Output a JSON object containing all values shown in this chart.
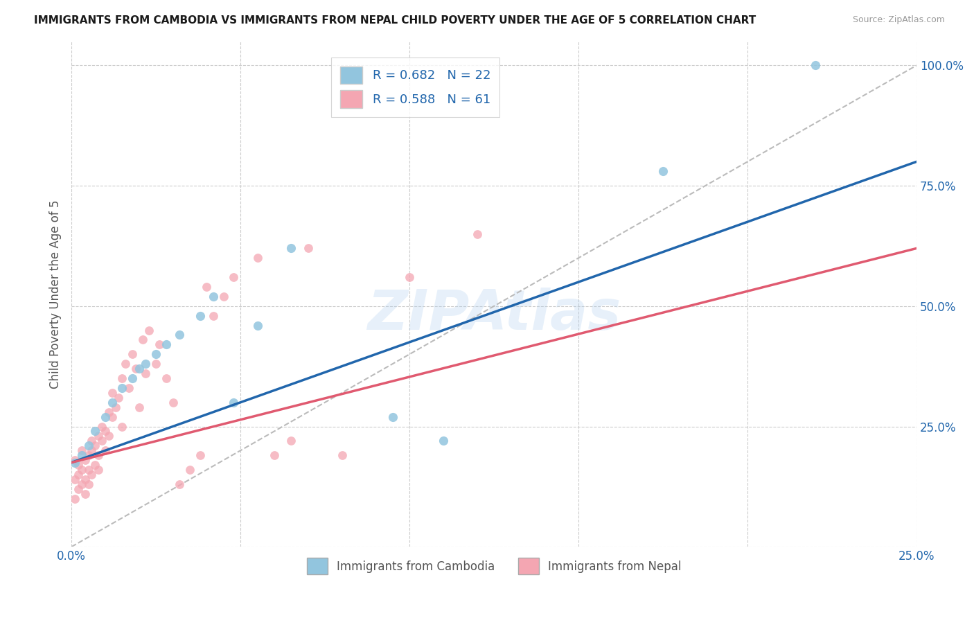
{
  "title": "IMMIGRANTS FROM CAMBODIA VS IMMIGRANTS FROM NEPAL CHILD POVERTY UNDER THE AGE OF 5 CORRELATION CHART",
  "source": "Source: ZipAtlas.com",
  "ylabel": "Child Poverty Under the Age of 5",
  "xlim": [
    0.0,
    0.25
  ],
  "ylim": [
    0.0,
    1.05
  ],
  "cambodia_color": "#92c5de",
  "nepal_color": "#f4a6b2",
  "line_cambodia_color": "#2166ac",
  "line_nepal_color": "#e05a70",
  "diagonal_color": "#bbbbbb",
  "R_cambodia": 0.682,
  "N_cambodia": 22,
  "R_nepal": 0.588,
  "N_nepal": 61,
  "legend_label_cambodia": "Immigrants from Cambodia",
  "legend_label_nepal": "Immigrants from Nepal",
  "watermark": "ZIPAtlas",
  "cambodia_x": [
    0.001,
    0.003,
    0.005,
    0.007,
    0.01,
    0.012,
    0.015,
    0.018,
    0.02,
    0.022,
    0.025,
    0.028,
    0.032,
    0.038,
    0.042,
    0.048,
    0.055,
    0.065,
    0.095,
    0.11,
    0.175,
    0.22
  ],
  "cambodia_y": [
    0.175,
    0.19,
    0.21,
    0.24,
    0.27,
    0.3,
    0.33,
    0.35,
    0.37,
    0.38,
    0.4,
    0.42,
    0.44,
    0.48,
    0.52,
    0.3,
    0.46,
    0.62,
    0.27,
    0.22,
    0.78,
    1.0
  ],
  "nepal_x": [
    0.001,
    0.001,
    0.001,
    0.002,
    0.002,
    0.002,
    0.003,
    0.003,
    0.003,
    0.004,
    0.004,
    0.004,
    0.005,
    0.005,
    0.005,
    0.006,
    0.006,
    0.006,
    0.007,
    0.007,
    0.008,
    0.008,
    0.008,
    0.009,
    0.009,
    0.01,
    0.01,
    0.011,
    0.011,
    0.012,
    0.012,
    0.013,
    0.014,
    0.015,
    0.015,
    0.016,
    0.017,
    0.018,
    0.019,
    0.02,
    0.021,
    0.022,
    0.023,
    0.025,
    0.026,
    0.028,
    0.03,
    0.032,
    0.035,
    0.038,
    0.04,
    0.042,
    0.045,
    0.048,
    0.055,
    0.06,
    0.065,
    0.07,
    0.08,
    0.1,
    0.12
  ],
  "nepal_y": [
    0.14,
    0.18,
    0.1,
    0.12,
    0.15,
    0.17,
    0.13,
    0.16,
    0.2,
    0.14,
    0.18,
    0.11,
    0.16,
    0.19,
    0.13,
    0.15,
    0.2,
    0.22,
    0.17,
    0.21,
    0.19,
    0.23,
    0.16,
    0.22,
    0.25,
    0.2,
    0.24,
    0.28,
    0.23,
    0.27,
    0.32,
    0.29,
    0.31,
    0.35,
    0.25,
    0.38,
    0.33,
    0.4,
    0.37,
    0.29,
    0.43,
    0.36,
    0.45,
    0.38,
    0.42,
    0.35,
    0.3,
    0.13,
    0.16,
    0.19,
    0.54,
    0.48,
    0.52,
    0.56,
    0.6,
    0.19,
    0.22,
    0.62,
    0.19,
    0.56,
    0.65
  ],
  "line_cambodia_x0": 0.0,
  "line_cambodia_y0": 0.175,
  "line_cambodia_x1": 0.25,
  "line_cambodia_y1": 0.8,
  "line_nepal_x0": 0.0,
  "line_nepal_y0": 0.175,
  "line_nepal_x1": 0.25,
  "line_nepal_y1": 0.62
}
